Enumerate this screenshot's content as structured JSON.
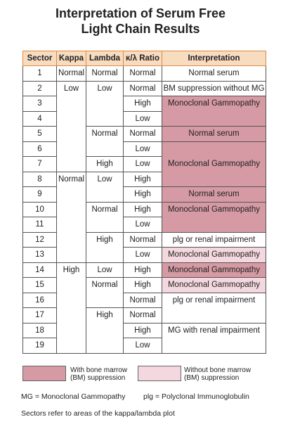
{
  "header": {
    "title": "Interpretation of Serum Free Light Chain Results"
  },
  "table": {
    "columns": [
      "Sector",
      "Kappa",
      "Lambda",
      "κ/λ Ratio",
      "Interpretation"
    ],
    "rows": [
      [
        "1",
        "Normal",
        "Normal",
        "Normal",
        "Normal serum"
      ],
      [
        "2",
        "Low",
        "Low",
        "Normal",
        "BM suppression without MG"
      ],
      [
        "3",
        "High",
        "Monoclonal Gammopathy"
      ],
      [
        "4",
        "Low"
      ],
      [
        "5",
        "Normal",
        "Normal",
        "Normal serum"
      ],
      [
        "6",
        "Low",
        "Monoclonal Gammopathy"
      ],
      [
        "7",
        "High",
        "Low"
      ],
      [
        "8",
        "Normal",
        "Low",
        "High"
      ],
      [
        "9",
        "High",
        "Normal serum"
      ],
      [
        "10",
        "Normal",
        "High",
        "Monoclonal Gammopathy"
      ],
      [
        "11",
        "Low"
      ],
      [
        "12",
        "High",
        "Normal",
        "plg or renal impairment"
      ],
      [
        "13",
        "Low",
        "Monoclonal Gammopathy"
      ],
      [
        "14",
        "High",
        "Low",
        "High",
        "Monoclonal Gammopathy"
      ],
      [
        "15",
        "Normal",
        "High",
        "Monoclonal Gammopathy"
      ],
      [
        "16",
        "Normal",
        "plg or renal impairment"
      ],
      [
        "17",
        "High",
        "Normal"
      ],
      [
        "18",
        "High",
        "MG with renal impairment"
      ],
      [
        "19",
        "Low"
      ]
    ]
  },
  "legend": [
    "With bone marrow (BM) suppression",
    "Without bone marrow (BM) suppression"
  ],
  "notes": [
    "MG = Monoclonal Gammopathy",
    "plg = Polyclonal Immunoglobulin",
    "Sectors refer to areas of the kappa/lambda plot"
  ]
}
